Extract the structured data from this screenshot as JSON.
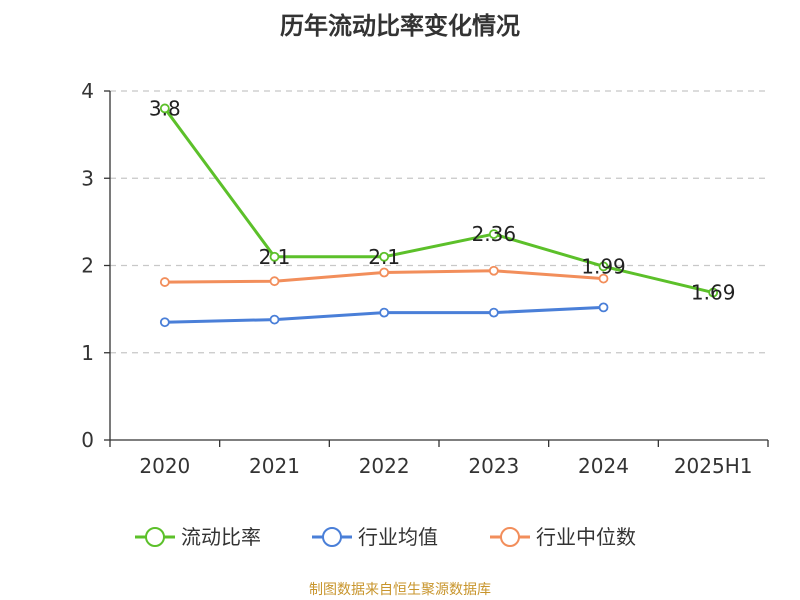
{
  "title": "历年流动比率变化情况",
  "source": "制图数据来自恒生聚源数据库",
  "chart_data": {
    "type": "line",
    "categories": [
      "2020",
      "2021",
      "2022",
      "2023",
      "2024",
      "2025H1"
    ],
    "ylim": [
      0,
      4
    ],
    "yticks": [
      "0",
      "1",
      "2",
      "3",
      "4"
    ],
    "grid": true,
    "legend_position": "bottom",
    "series": [
      {
        "name": "流动比率",
        "color": "#5cc02a",
        "values": [
          3.8,
          2.1,
          2.1,
          2.36,
          1.99,
          1.69
        ],
        "labels": [
          "3.8",
          "2.1",
          "2.1",
          "2.36",
          "1.99",
          "1.69"
        ]
      },
      {
        "name": "行业均值",
        "color": "#4a7fd8",
        "values": [
          1.35,
          1.38,
          1.46,
          1.46,
          1.52,
          null
        ]
      },
      {
        "name": "行业中位数",
        "color": "#f28e5b",
        "values": [
          1.81,
          1.82,
          1.92,
          1.94,
          1.85,
          null
        ]
      }
    ]
  }
}
